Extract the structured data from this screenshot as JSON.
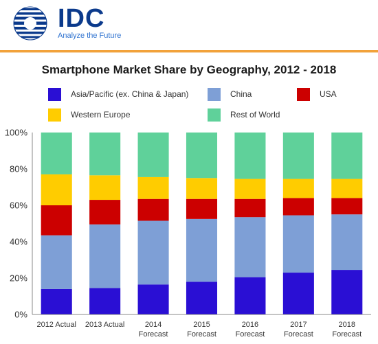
{
  "header": {
    "logo_text": "IDC",
    "tagline": "Analyze the Future"
  },
  "colors": {
    "accent_rule": "#f2a23a",
    "logo_blue": "#0b3a8c"
  },
  "chart_data": {
    "type": "bar",
    "stacked": true,
    "title": "Smartphone Market Share by Geography, 2012 - 2018",
    "xlabel": "",
    "ylabel": "",
    "ylim": [
      0,
      100
    ],
    "y_ticks": [
      "0%",
      "20%",
      "40%",
      "60%",
      "80%",
      "100%"
    ],
    "y_tick_values": [
      0,
      20,
      40,
      60,
      80,
      100
    ],
    "grid": false,
    "legend_position": "top",
    "categories": [
      [
        "2012 Actual"
      ],
      [
        "2013 Actual"
      ],
      [
        "2014",
        "Forecast"
      ],
      [
        "2015",
        "Forecast"
      ],
      [
        "2016",
        "Forecast"
      ],
      [
        "2017",
        "Forecast"
      ],
      [
        "2018",
        "Forecast"
      ]
    ],
    "series": [
      {
        "name": "Asia/Pacific (ex. China & Japan)",
        "color": "#2a0fd4",
        "values": [
          14,
          14.5,
          16.5,
          18,
          20.5,
          23,
          24.5
        ]
      },
      {
        "name": "China",
        "color": "#7e9fd6",
        "values": [
          29.5,
          35,
          35,
          34.5,
          33,
          31.5,
          30.5
        ]
      },
      {
        "name": "USA",
        "color": "#cc0000",
        "values": [
          16.5,
          13.5,
          12,
          11,
          10,
          9.5,
          9
        ]
      },
      {
        "name": "Western Europe",
        "color": "#ffcc00",
        "values": [
          17,
          13.5,
          12,
          11.5,
          11,
          10.5,
          10.5
        ]
      },
      {
        "name": "Rest of World",
        "color": "#5fd19a",
        "values": [
          23,
          23.5,
          24.5,
          25,
          25.5,
          25.5,
          25.5
        ]
      }
    ]
  }
}
